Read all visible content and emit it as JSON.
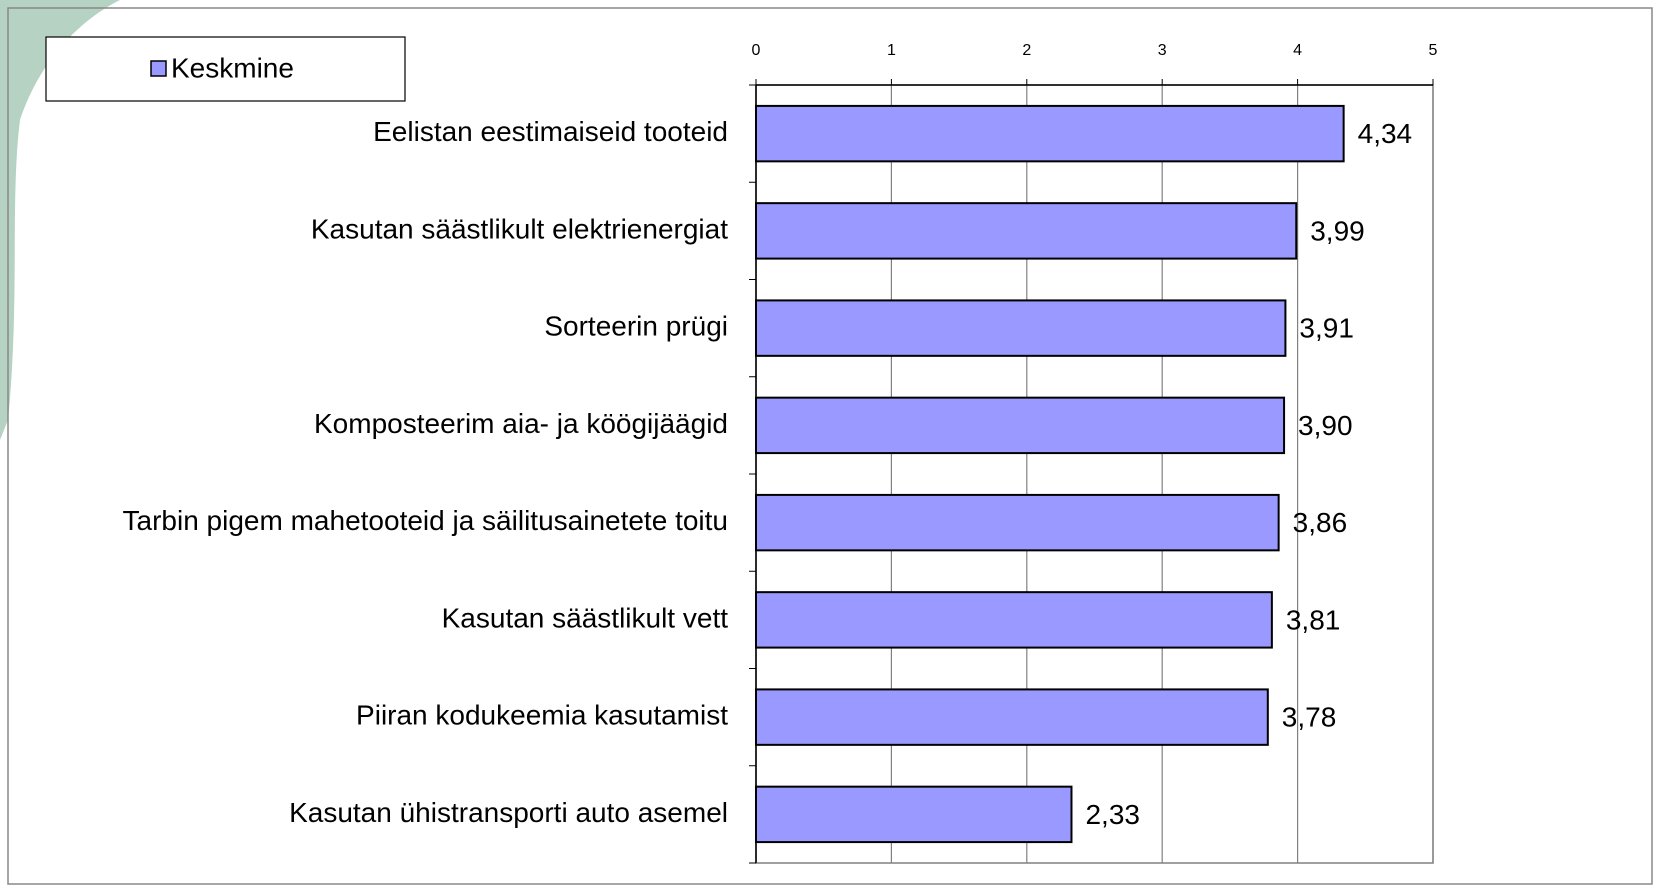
{
  "chart_data": {
    "type": "bar",
    "categories": [
      "Eelistan eestimaiseid tooteid",
      "Kasutan säästlikult elektrienergiat",
      "Sorteerin prügi",
      "Komposteerim aia- ja köögijäägid",
      "Tarbin pigem mahetooteid ja säilitusainetete toitu",
      "Kasutan säästlikult vett",
      "Piiran kodukeemia kasutamist",
      "Kasutan ühistransporti auto asemel"
    ],
    "series": [
      {
        "name": "Keskmine",
        "color": "#9999ff",
        "values": [
          4.34,
          3.99,
          3.91,
          3.9,
          3.86,
          3.81,
          3.78,
          2.33
        ],
        "value_labels": [
          "4,34",
          "3,99",
          "3,91",
          "3,90",
          "3,86",
          "3,81",
          "3,78",
          "2,33"
        ]
      }
    ],
    "xlim": [
      0,
      5
    ],
    "xticks": [
      0,
      1,
      2,
      3,
      4,
      5
    ],
    "grid": true,
    "legend": "top-left"
  }
}
